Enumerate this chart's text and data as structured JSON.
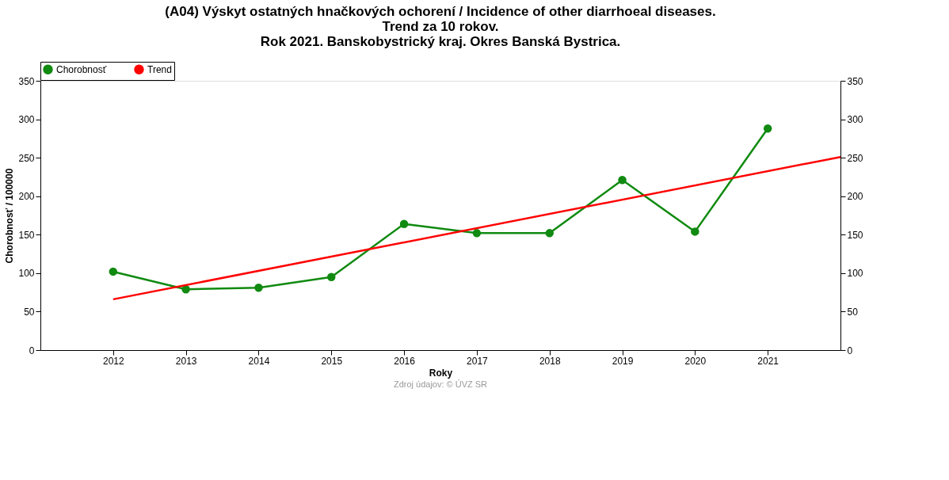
{
  "chart_data": {
    "type": "line",
    "title": [
      "(A04) Výskyt ostatných hnačkových ochorení / Incidence of other diarrhoeal diseases.",
      "Trend za 10 rokov.",
      "Rok 2021. Banskobystrický kraj. Okres Banská Bystrica."
    ],
    "xlabel": "Roky",
    "ylabel": "Chorobnosť / 100000",
    "x": [
      2012,
      2013,
      2014,
      2015,
      2016,
      2017,
      2018,
      2019,
      2020,
      2021
    ],
    "series": [
      {
        "name": "Chorobnosť",
        "color": "#108a10",
        "marker": "circle",
        "values": [
          102,
          79,
          81,
          95,
          164,
          152,
          152,
          221,
          154,
          288
        ]
      },
      {
        "name": "Trend",
        "color": "#ff0000",
        "marker": "none",
        "x": [
          2012,
          2022
        ],
        "values": [
          66,
          251
        ]
      }
    ],
    "xlim": [
      2011,
      2022
    ],
    "xticks": [
      2012,
      2013,
      2014,
      2015,
      2016,
      2017,
      2018,
      2019,
      2020,
      2021
    ],
    "ylim": [
      0,
      350
    ],
    "yticks": [
      0,
      50,
      100,
      150,
      200,
      250,
      300,
      350
    ],
    "y2lim": [
      0,
      350
    ],
    "y2ticks": [
      0,
      50,
      100,
      150,
      200,
      250,
      300,
      350
    ],
    "grid": false,
    "legend": "top left",
    "annotations": [
      "Zdroj údajov: © ÚVZ SR"
    ]
  }
}
